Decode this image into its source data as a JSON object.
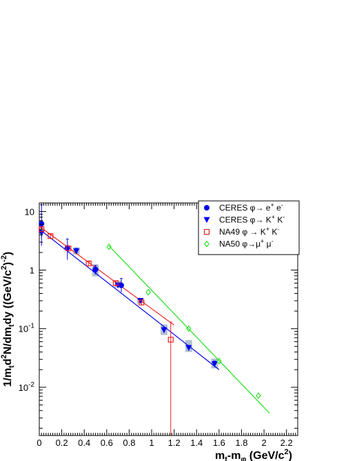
{
  "chart_data": {
    "type": "scatter",
    "title": "",
    "xlabel": "m_t-m_φ (GeV/c^2)",
    "ylabel": "1/m_t d^2N/dm_t dy ((GeV/c^2)^-2)",
    "xlim": [
      0,
      2.3
    ],
    "ylim": [
      0.0015,
      14
    ],
    "yscale": "log",
    "xticks": [
      0,
      0.2,
      0.4,
      0.6,
      0.8,
      1,
      1.2,
      1.4,
      1.6,
      1.8,
      2,
      2.2
    ],
    "xtick_labels": [
      "0",
      "0.2",
      "0.4",
      "0.6",
      "0.8",
      "1",
      "1.2",
      "1.4",
      "1.6",
      "1.8",
      "2",
      "2.2"
    ],
    "yticks": [
      0.01,
      0.1,
      1,
      10
    ],
    "ytick_labels": [
      {
        "base": "10",
        "exp": "-2"
      },
      {
        "base": "10",
        "exp": "-1"
      },
      {
        "base": "1",
        "exp": ""
      },
      {
        "base": "10",
        "exp": ""
      }
    ],
    "legend_position": "top-right",
    "colors": {
      "ceres": "#0000ee",
      "na49": "#ee2222",
      "na50": "#22dd22",
      "syst_band": "#a9b9cc"
    },
    "series": [
      {
        "name": "CERES φ→ e⁺ e⁻",
        "legend": {
          "pre": "CERES φ→ e",
          "sup1": "+",
          "mid": " e",
          "sup2": "-"
        },
        "marker": "circle",
        "color": "#0000ee",
        "points": [
          {
            "x": 0.02,
            "y": 6.2,
            "ylo": 2.6,
            "yhi": 13
          },
          {
            "x": 0.25,
            "y": 2.4,
            "ylo": 1.5,
            "yhi": 3.4
          },
          {
            "x": 0.5,
            "y": 1.03,
            "ylo": 0.85,
            "yhi": 1.2
          },
          {
            "x": 0.73,
            "y": 0.55,
            "ylo": 0.42,
            "yhi": 0.72
          }
        ]
      },
      {
        "name": "CERES φ→ K⁺ K⁻",
        "legend": {
          "pre": "CERES φ→ K",
          "sup1": "+",
          "mid": " K",
          "sup2": "-"
        },
        "marker": "triangle-down",
        "color": "#0000ee",
        "points": [
          {
            "x": 0.02,
            "y": 4.3,
            "ylo": 3.5,
            "yhi": 5.4
          },
          {
            "x": 0.33,
            "y": 2.1,
            "ylo": 1.9,
            "yhi": 2.35
          },
          {
            "x": 0.5,
            "y": 0.95,
            "ylo": 0.85,
            "yhi": 1.05
          },
          {
            "x": 0.7,
            "y": 0.55,
            "ylo": 0.5,
            "yhi": 0.6
          },
          {
            "x": 0.9,
            "y": 0.3,
            "ylo": 0.27,
            "yhi": 0.33
          },
          {
            "x": 1.11,
            "y": 0.095,
            "ylo": 0.085,
            "yhi": 0.105
          },
          {
            "x": 1.33,
            "y": 0.047,
            "ylo": 0.042,
            "yhi": 0.052
          },
          {
            "x": 1.56,
            "y": 0.025,
            "ylo": 0.022,
            "yhi": 0.028
          }
        ],
        "syst_boxes": [
          {
            "x": 0.33,
            "ylo": 1.85,
            "yhi": 2.45,
            "half_width": 0.03
          },
          {
            "x": 0.5,
            "ylo": 0.78,
            "yhi": 1.25,
            "half_width": 0.03
          },
          {
            "x": 0.7,
            "ylo": 0.5,
            "yhi": 0.66,
            "half_width": 0.03
          },
          {
            "x": 0.9,
            "ylo": 0.27,
            "yhi": 0.33,
            "half_width": 0.03
          },
          {
            "x": 1.11,
            "ylo": 0.078,
            "yhi": 0.118,
            "half_width": 0.03
          },
          {
            "x": 1.33,
            "ylo": 0.04,
            "yhi": 0.064,
            "half_width": 0.03
          },
          {
            "x": 1.56,
            "ylo": 0.021,
            "yhi": 0.031,
            "half_width": 0.03
          }
        ],
        "fit": {
          "x1": 0.0,
          "y1": 5.0,
          "x2": 1.6,
          "y2": 0.02
        }
      },
      {
        "name": "NA49 φ → K⁺ K⁻",
        "legend": {
          "pre": "NA49 φ → K",
          "sup1": "+",
          "mid": " K",
          "sup2": "-"
        },
        "marker": "square-open",
        "color": "#ee2222",
        "points": [
          {
            "x": 0.02,
            "y": 5.0,
            "ylo": 4.5,
            "yhi": 5.5
          },
          {
            "x": 0.1,
            "y": 3.8,
            "ylo": 3.5,
            "yhi": 4.1
          },
          {
            "x": 0.26,
            "y": 2.35,
            "ylo": 2.15,
            "yhi": 2.6
          },
          {
            "x": 0.44,
            "y": 1.3,
            "ylo": 1.2,
            "yhi": 1.4
          },
          {
            "x": 0.68,
            "y": 0.6,
            "ylo": 0.54,
            "yhi": 0.66
          },
          {
            "x": 0.91,
            "y": 0.28,
            "ylo": 0.25,
            "yhi": 0.31
          },
          {
            "x": 1.17,
            "y": 0.065,
            "ylo": 0.0015,
            "yhi": 0.13
          }
        ],
        "fit": {
          "x1": 0.0,
          "y1": 5.6,
          "x2": 1.2,
          "y2": 0.115
        }
      },
      {
        "name": "NA50 φ→μ⁺ μ⁻",
        "legend": {
          "pre": "NA50 φ→μ",
          "sup1": "+",
          "mid": " μ",
          "sup2": "-"
        },
        "marker": "diamond-open",
        "color": "#22dd22",
        "points": [
          {
            "x": 0.62,
            "y": 2.5
          },
          {
            "x": 0.97,
            "y": 0.42
          },
          {
            "x": 1.33,
            "y": 0.1
          },
          {
            "x": 1.6,
            "y": 0.028
          },
          {
            "x": 1.95,
            "y": 0.0072
          }
        ],
        "fit": {
          "x1": 0.62,
          "y1": 2.6,
          "x2": 2.05,
          "y2": 0.0036
        }
      }
    ]
  }
}
